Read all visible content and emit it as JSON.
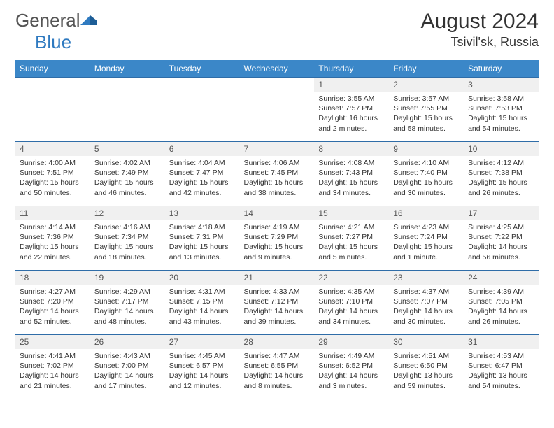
{
  "logo": {
    "word1": "General",
    "word2": "Blue"
  },
  "title": "August 2024",
  "location": "Tsivil'sk, Russia",
  "colors": {
    "header_bg": "#3b87c8",
    "header_text": "#ffffff",
    "rule": "#2f6da8",
    "daynum_bg": "#f0f0f0",
    "text": "#333333",
    "logo_gray": "#555555",
    "logo_blue": "#2f7ac0"
  },
  "day_headers": [
    "Sunday",
    "Monday",
    "Tuesday",
    "Wednesday",
    "Thursday",
    "Friday",
    "Saturday"
  ],
  "weeks": [
    [
      {
        "n": "",
        "sunrise": "",
        "sunset": "",
        "daylight": ""
      },
      {
        "n": "",
        "sunrise": "",
        "sunset": "",
        "daylight": ""
      },
      {
        "n": "",
        "sunrise": "",
        "sunset": "",
        "daylight": ""
      },
      {
        "n": "",
        "sunrise": "",
        "sunset": "",
        "daylight": ""
      },
      {
        "n": "1",
        "sunrise": "Sunrise: 3:55 AM",
        "sunset": "Sunset: 7:57 PM",
        "daylight": "Daylight: 16 hours and 2 minutes."
      },
      {
        "n": "2",
        "sunrise": "Sunrise: 3:57 AM",
        "sunset": "Sunset: 7:55 PM",
        "daylight": "Daylight: 15 hours and 58 minutes."
      },
      {
        "n": "3",
        "sunrise": "Sunrise: 3:58 AM",
        "sunset": "Sunset: 7:53 PM",
        "daylight": "Daylight: 15 hours and 54 minutes."
      }
    ],
    [
      {
        "n": "4",
        "sunrise": "Sunrise: 4:00 AM",
        "sunset": "Sunset: 7:51 PM",
        "daylight": "Daylight: 15 hours and 50 minutes."
      },
      {
        "n": "5",
        "sunrise": "Sunrise: 4:02 AM",
        "sunset": "Sunset: 7:49 PM",
        "daylight": "Daylight: 15 hours and 46 minutes."
      },
      {
        "n": "6",
        "sunrise": "Sunrise: 4:04 AM",
        "sunset": "Sunset: 7:47 PM",
        "daylight": "Daylight: 15 hours and 42 minutes."
      },
      {
        "n": "7",
        "sunrise": "Sunrise: 4:06 AM",
        "sunset": "Sunset: 7:45 PM",
        "daylight": "Daylight: 15 hours and 38 minutes."
      },
      {
        "n": "8",
        "sunrise": "Sunrise: 4:08 AM",
        "sunset": "Sunset: 7:43 PM",
        "daylight": "Daylight: 15 hours and 34 minutes."
      },
      {
        "n": "9",
        "sunrise": "Sunrise: 4:10 AM",
        "sunset": "Sunset: 7:40 PM",
        "daylight": "Daylight: 15 hours and 30 minutes."
      },
      {
        "n": "10",
        "sunrise": "Sunrise: 4:12 AM",
        "sunset": "Sunset: 7:38 PM",
        "daylight": "Daylight: 15 hours and 26 minutes."
      }
    ],
    [
      {
        "n": "11",
        "sunrise": "Sunrise: 4:14 AM",
        "sunset": "Sunset: 7:36 PM",
        "daylight": "Daylight: 15 hours and 22 minutes."
      },
      {
        "n": "12",
        "sunrise": "Sunrise: 4:16 AM",
        "sunset": "Sunset: 7:34 PM",
        "daylight": "Daylight: 15 hours and 18 minutes."
      },
      {
        "n": "13",
        "sunrise": "Sunrise: 4:18 AM",
        "sunset": "Sunset: 7:31 PM",
        "daylight": "Daylight: 15 hours and 13 minutes."
      },
      {
        "n": "14",
        "sunrise": "Sunrise: 4:19 AM",
        "sunset": "Sunset: 7:29 PM",
        "daylight": "Daylight: 15 hours and 9 minutes."
      },
      {
        "n": "15",
        "sunrise": "Sunrise: 4:21 AM",
        "sunset": "Sunset: 7:27 PM",
        "daylight": "Daylight: 15 hours and 5 minutes."
      },
      {
        "n": "16",
        "sunrise": "Sunrise: 4:23 AM",
        "sunset": "Sunset: 7:24 PM",
        "daylight": "Daylight: 15 hours and 1 minute."
      },
      {
        "n": "17",
        "sunrise": "Sunrise: 4:25 AM",
        "sunset": "Sunset: 7:22 PM",
        "daylight": "Daylight: 14 hours and 56 minutes."
      }
    ],
    [
      {
        "n": "18",
        "sunrise": "Sunrise: 4:27 AM",
        "sunset": "Sunset: 7:20 PM",
        "daylight": "Daylight: 14 hours and 52 minutes."
      },
      {
        "n": "19",
        "sunrise": "Sunrise: 4:29 AM",
        "sunset": "Sunset: 7:17 PM",
        "daylight": "Daylight: 14 hours and 48 minutes."
      },
      {
        "n": "20",
        "sunrise": "Sunrise: 4:31 AM",
        "sunset": "Sunset: 7:15 PM",
        "daylight": "Daylight: 14 hours and 43 minutes."
      },
      {
        "n": "21",
        "sunrise": "Sunrise: 4:33 AM",
        "sunset": "Sunset: 7:12 PM",
        "daylight": "Daylight: 14 hours and 39 minutes."
      },
      {
        "n": "22",
        "sunrise": "Sunrise: 4:35 AM",
        "sunset": "Sunset: 7:10 PM",
        "daylight": "Daylight: 14 hours and 34 minutes."
      },
      {
        "n": "23",
        "sunrise": "Sunrise: 4:37 AM",
        "sunset": "Sunset: 7:07 PM",
        "daylight": "Daylight: 14 hours and 30 minutes."
      },
      {
        "n": "24",
        "sunrise": "Sunrise: 4:39 AM",
        "sunset": "Sunset: 7:05 PM",
        "daylight": "Daylight: 14 hours and 26 minutes."
      }
    ],
    [
      {
        "n": "25",
        "sunrise": "Sunrise: 4:41 AM",
        "sunset": "Sunset: 7:02 PM",
        "daylight": "Daylight: 14 hours and 21 minutes."
      },
      {
        "n": "26",
        "sunrise": "Sunrise: 4:43 AM",
        "sunset": "Sunset: 7:00 PM",
        "daylight": "Daylight: 14 hours and 17 minutes."
      },
      {
        "n": "27",
        "sunrise": "Sunrise: 4:45 AM",
        "sunset": "Sunset: 6:57 PM",
        "daylight": "Daylight: 14 hours and 12 minutes."
      },
      {
        "n": "28",
        "sunrise": "Sunrise: 4:47 AM",
        "sunset": "Sunset: 6:55 PM",
        "daylight": "Daylight: 14 hours and 8 minutes."
      },
      {
        "n": "29",
        "sunrise": "Sunrise: 4:49 AM",
        "sunset": "Sunset: 6:52 PM",
        "daylight": "Daylight: 14 hours and 3 minutes."
      },
      {
        "n": "30",
        "sunrise": "Sunrise: 4:51 AM",
        "sunset": "Sunset: 6:50 PM",
        "daylight": "Daylight: 13 hours and 59 minutes."
      },
      {
        "n": "31",
        "sunrise": "Sunrise: 4:53 AM",
        "sunset": "Sunset: 6:47 PM",
        "daylight": "Daylight: 13 hours and 54 minutes."
      }
    ]
  ]
}
